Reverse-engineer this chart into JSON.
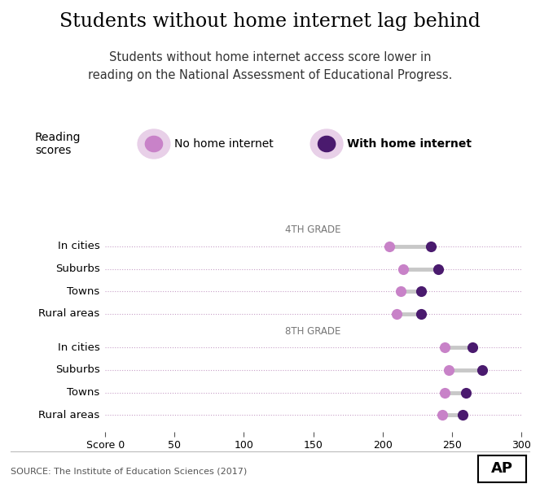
{
  "title": "Students without home internet lag behind",
  "subtitle": "Students without home internet access score lower in\nreading on the National Assessment of Educational Progress.",
  "source": "SOURCE: The Institute of Education Sciences (2017)",
  "legend_no_internet": "No home internet",
  "legend_with_internet": "With home internet",
  "legend_label": "Reading\nscores",
  "grade4_label": "4TH GRADE",
  "grade8_label": "8TH GRADE",
  "categories": [
    "In cities",
    "Suburbs",
    "Towns",
    "Rural areas"
  ],
  "grade4_no_internet": [
    205,
    215,
    213,
    210
  ],
  "grade4_with_internet": [
    235,
    240,
    228,
    228
  ],
  "grade8_no_internet": [
    245,
    248,
    245,
    243
  ],
  "grade8_with_internet": [
    265,
    272,
    260,
    258
  ],
  "color_no_internet": "#c882c8",
  "color_with_internet": "#4a1a6e",
  "color_connector": "#c8c8c8",
  "color_dotted_line": "#c8a0c8",
  "color_legend_bg": "#e8d0e8",
  "xlim": [
    0,
    300
  ],
  "xticks": [
    0,
    50,
    100,
    150,
    200,
    250,
    300
  ],
  "background_color": "#ffffff",
  "title_fontsize": 17,
  "subtitle_fontsize": 10.5,
  "label_fontsize": 9.5,
  "tick_fontsize": 9,
  "grade_label_fontsize": 8.5,
  "legend_fontsize": 10,
  "dot_size": 90,
  "legend_dot_size": 120,
  "legend_bg_size": 300
}
